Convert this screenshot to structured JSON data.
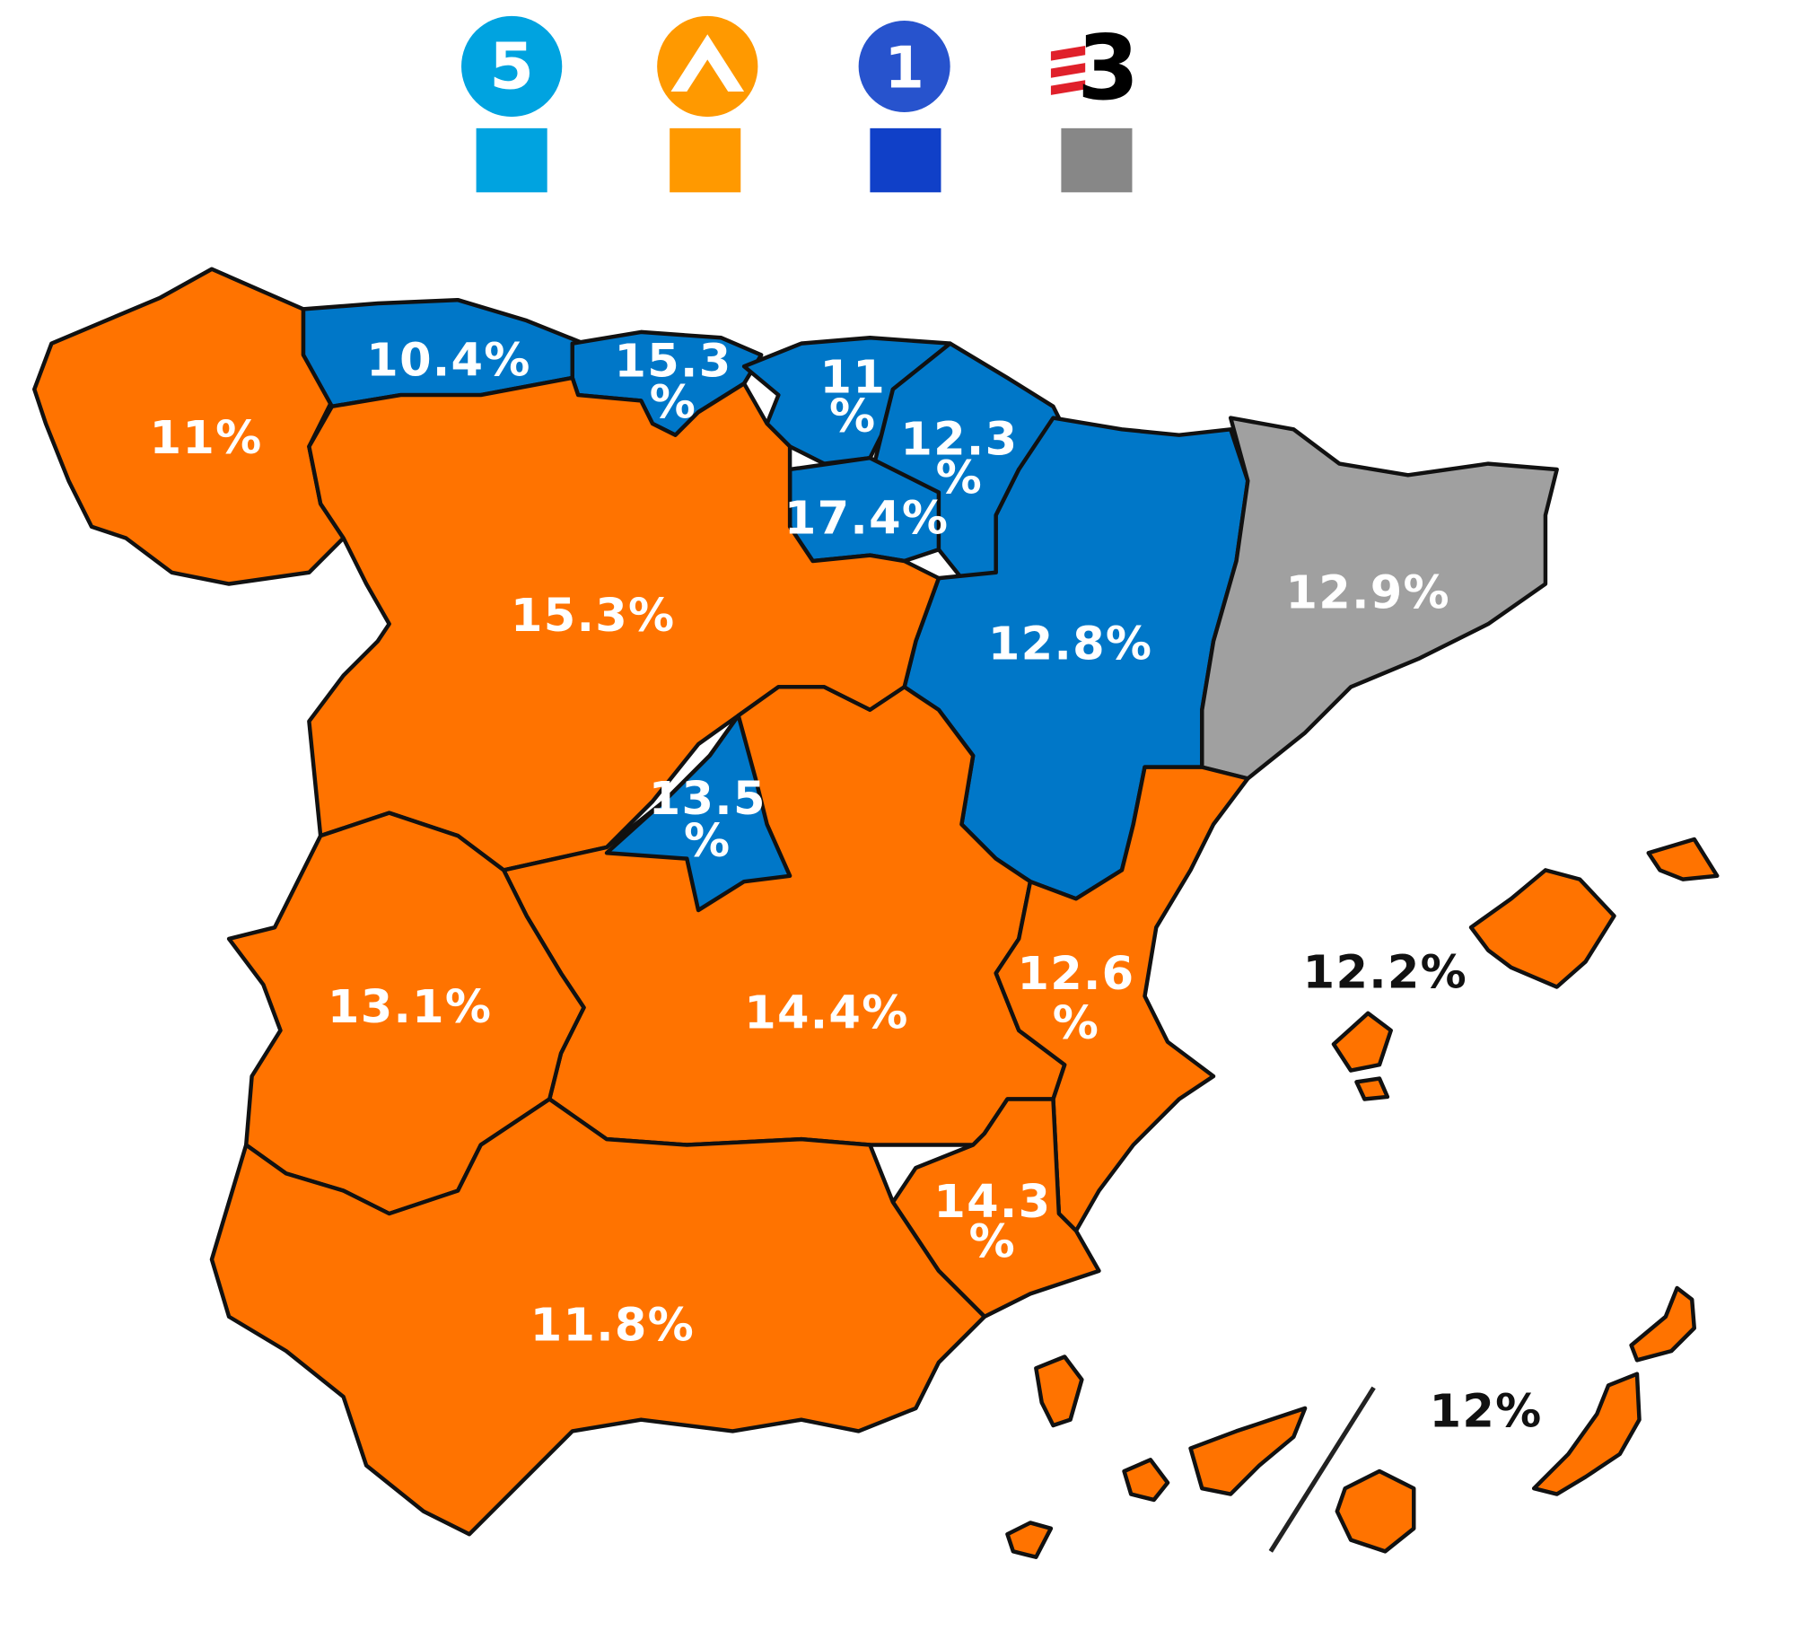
{
  "legend": [
    {
      "logo": "5",
      "color": "#00a3e0"
    },
    {
      "color": "#ff9900"
    },
    {
      "logo": "1",
      "color": "#1040c8"
    },
    {
      "logo": "3",
      "color": "#878787"
    }
  ],
  "regions": [
    {
      "label": [
        "11%"
      ],
      "color": "#ff7300"
    },
    {
      "label": [
        "10.4%"
      ],
      "color": "#0077c8"
    },
    {
      "label": [
        "15.3",
        "%"
      ],
      "color": "#0077c8"
    },
    {
      "label": [
        "11",
        "%"
      ],
      "color": "#0077c8"
    },
    {
      "label": [
        "12.3",
        "%"
      ],
      "color": "#0077c8"
    },
    {
      "label": [
        "17.4%"
      ],
      "color": "#0077c8"
    },
    {
      "label": [
        "12.8%"
      ],
      "color": "#0077c8"
    },
    {
      "label": [
        "12.9%"
      ],
      "color": "#a0a0a0"
    },
    {
      "label": [
        "15.3%"
      ],
      "color": "#ff7300"
    },
    {
      "label": [
        "13.5",
        "%"
      ],
      "color": "#0077c8"
    },
    {
      "label": [
        "14.4%"
      ],
      "color": "#ff7300"
    },
    {
      "label": [
        "13.1%"
      ],
      "color": "#ff7300"
    },
    {
      "label": [
        "12.6",
        "%"
      ],
      "color": "#ff7300"
    },
    {
      "label": [
        "14.3",
        "%"
      ],
      "color": "#ff7300"
    },
    {
      "label": [
        "11.8%"
      ],
      "color": "#ff7300"
    },
    {
      "label": [
        "12.2%"
      ],
      "color": "#ff7300"
    },
    {
      "label": [
        "12%"
      ],
      "color": "#ff7300"
    }
  ]
}
